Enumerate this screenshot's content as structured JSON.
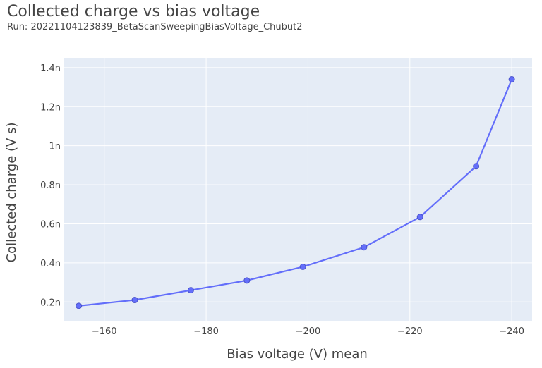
{
  "header": {
    "title": "Collected charge vs bias voltage",
    "subtitle": "Run: 20221104123839_BetaScanSweepingBiasVoltage_Chubut2"
  },
  "colors": {
    "plot_bg": "#e5ecf6",
    "grid": "#ffffff",
    "series": "#636efa",
    "text": "#444444"
  },
  "chart_data": {
    "type": "line",
    "xlabel": "Bias voltage (V) mean",
    "ylabel": "Collected charge (V s)",
    "x_reversed": true,
    "xlim": [
      -152,
      -244
    ],
    "ylim": [
      1e-10,
      1.45e-09
    ],
    "x_ticks": [
      {
        "value": -160,
        "label": "−160"
      },
      {
        "value": -180,
        "label": "−180"
      },
      {
        "value": -200,
        "label": "−200"
      },
      {
        "value": -220,
        "label": "−220"
      },
      {
        "value": -240,
        "label": "−240"
      }
    ],
    "y_ticks": [
      {
        "value": 2e-10,
        "label": "0.2n"
      },
      {
        "value": 4e-10,
        "label": "0.4n"
      },
      {
        "value": 6e-10,
        "label": "0.6n"
      },
      {
        "value": 8e-10,
        "label": "0.8n"
      },
      {
        "value": 1e-09,
        "label": "1n"
      },
      {
        "value": 1.2e-09,
        "label": "1.2n"
      },
      {
        "value": 1.4e-09,
        "label": "1.4n"
      }
    ],
    "grid": true,
    "series": [
      {
        "x": [
          -155,
          -166,
          -177,
          -188,
          -199,
          -211,
          -222,
          -233,
          -240
        ],
        "y": [
          1.8e-10,
          2.1e-10,
          2.6e-10,
          3.1e-10,
          3.8e-10,
          4.8e-10,
          6.35e-10,
          8.95e-10,
          1.34e-09
        ]
      }
    ]
  }
}
